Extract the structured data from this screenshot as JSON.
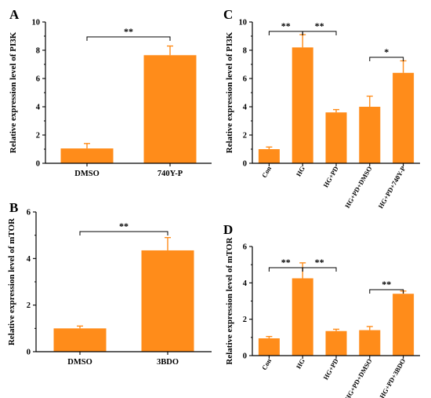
{
  "colors": {
    "bar": "#FF8C1A",
    "axis": "#000000",
    "background": "#ffffff"
  },
  "chart_data": [
    {
      "panel": "A",
      "type": "bar",
      "ylabel": "Relative expression level of PI3K",
      "ylim": [
        0,
        10
      ],
      "yticks": [
        0,
        2,
        4,
        6,
        8,
        10
      ],
      "categories": [
        "DMSO",
        "740Y-P"
      ],
      "values": [
        1.05,
        7.65
      ],
      "errors": [
        0.35,
        0.65
      ],
      "significance": [
        {
          "from": 0,
          "to": 1,
          "label": "**"
        }
      ]
    },
    {
      "panel": "B",
      "type": "bar",
      "ylabel": "Relative expression level of mTOR",
      "ylim": [
        0,
        6
      ],
      "yticks": [
        0,
        2,
        4,
        6
      ],
      "categories": [
        "DMSO",
        "3BDO"
      ],
      "values": [
        1.0,
        4.35
      ],
      "errors": [
        0.1,
        0.55
      ],
      "significance": [
        {
          "from": 0,
          "to": 1,
          "label": "**"
        }
      ]
    },
    {
      "panel": "C",
      "type": "bar",
      "ylabel": "Relative expression level of PI3K",
      "ylim": [
        0,
        10
      ],
      "yticks": [
        0,
        2,
        4,
        6,
        8,
        10
      ],
      "categories": [
        "Con",
        "HG",
        "HG+PD",
        "HG+PD+DMSO",
        "HG+PD+740Y-P"
      ],
      "values": [
        1.0,
        8.2,
        3.6,
        4.0,
        6.4
      ],
      "errors": [
        0.15,
        0.9,
        0.2,
        0.75,
        0.85
      ],
      "significance": [
        {
          "from": 0,
          "to": 1,
          "label": "**"
        },
        {
          "from": 1,
          "to": 2,
          "label": "**"
        },
        {
          "from": 3,
          "to": 4,
          "label": "*"
        }
      ]
    },
    {
      "panel": "D",
      "type": "bar",
      "ylabel": "Relative expression level of mTOR",
      "ylim": [
        0,
        6
      ],
      "yticks": [
        0,
        2,
        4,
        6
      ],
      "categories": [
        "Con",
        "HG",
        "HG+PD",
        "HG+PD+DMSO",
        "HG+PD+3BDO"
      ],
      "values": [
        0.95,
        4.25,
        1.35,
        1.4,
        3.4
      ],
      "errors": [
        0.1,
        0.85,
        0.1,
        0.2,
        0.15
      ],
      "significance": [
        {
          "from": 0,
          "to": 1,
          "label": "**"
        },
        {
          "from": 1,
          "to": 2,
          "label": "**"
        },
        {
          "from": 3,
          "to": 4,
          "label": "**"
        }
      ]
    }
  ]
}
